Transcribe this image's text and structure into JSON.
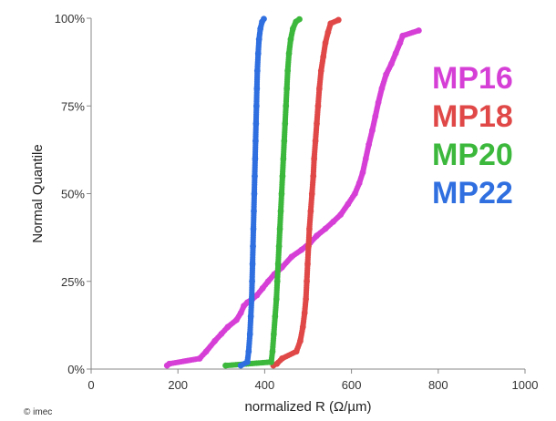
{
  "chart_data": {
    "type": "scatter",
    "title": "",
    "xlabel": "normalized R (Ω/µm)",
    "ylabel": "Normal Quantile",
    "xlim": [
      0,
      1000
    ],
    "ylim": [
      0,
      100
    ],
    "x_ticks": [
      "0",
      "200",
      "400",
      "600",
      "800",
      "1000"
    ],
    "y_ticks": [
      "0%",
      "25%",
      "50%",
      "75%",
      "100%"
    ],
    "grid": false,
    "legend_position": "right",
    "copyright": "© imec",
    "series": [
      {
        "name": "MP16",
        "color": "#d63fd6",
        "points": [
          [
            175,
            1
          ],
          [
            180,
            1.5
          ],
          [
            250,
            3
          ],
          [
            265,
            5
          ],
          [
            285,
            8
          ],
          [
            300,
            10
          ],
          [
            315,
            12
          ],
          [
            335,
            14
          ],
          [
            345,
            16
          ],
          [
            352,
            18
          ],
          [
            360,
            19
          ],
          [
            372,
            20
          ],
          [
            382,
            21
          ],
          [
            395,
            23
          ],
          [
            408,
            25
          ],
          [
            422,
            27
          ],
          [
            440,
            29
          ],
          [
            462,
            32
          ],
          [
            485,
            34
          ],
          [
            505,
            36
          ],
          [
            520,
            38
          ],
          [
            540,
            40
          ],
          [
            558,
            42
          ],
          [
            575,
            44
          ],
          [
            592,
            47
          ],
          [
            608,
            50
          ],
          [
            618,
            53
          ],
          [
            626,
            56
          ],
          [
            633,
            60
          ],
          [
            640,
            64
          ],
          [
            648,
            68
          ],
          [
            655,
            72
          ],
          [
            662,
            76
          ],
          [
            670,
            80
          ],
          [
            680,
            84
          ],
          [
            692,
            87
          ],
          [
            702,
            90
          ],
          [
            712,
            93
          ],
          [
            718,
            95
          ],
          [
            755,
            96.5
          ]
        ]
      },
      {
        "name": "MP18",
        "color": "#e04848",
        "points": [
          [
            420,
            1
          ],
          [
            428,
            1.5
          ],
          [
            440,
            3
          ],
          [
            473,
            5
          ],
          [
            482,
            8
          ],
          [
            488,
            12
          ],
          [
            492,
            16
          ],
          [
            495,
            20
          ],
          [
            497,
            25
          ],
          [
            499,
            30
          ],
          [
            501,
            35
          ],
          [
            503,
            40
          ],
          [
            506,
            45
          ],
          [
            509,
            50
          ],
          [
            512,
            55
          ],
          [
            514,
            60
          ],
          [
            517,
            65
          ],
          [
            520,
            70
          ],
          [
            523,
            75
          ],
          [
            526,
            80
          ],
          [
            530,
            85
          ],
          [
            535,
            89
          ],
          [
            540,
            93
          ],
          [
            546,
            96
          ],
          [
            552,
            98.5
          ],
          [
            570,
            99.5
          ]
        ]
      },
      {
        "name": "MP20",
        "color": "#3cb83c",
        "points": [
          [
            310,
            1
          ],
          [
            415,
            2
          ],
          [
            418,
            5
          ],
          [
            421,
            10
          ],
          [
            424,
            15
          ],
          [
            427,
            20
          ],
          [
            429,
            25
          ],
          [
            431,
            30
          ],
          [
            433,
            35
          ],
          [
            435,
            40
          ],
          [
            437,
            45
          ],
          [
            439,
            50
          ],
          [
            441,
            55
          ],
          [
            443,
            60
          ],
          [
            445,
            65
          ],
          [
            447,
            70
          ],
          [
            449,
            75
          ],
          [
            451,
            80
          ],
          [
            453,
            85
          ],
          [
            456,
            90
          ],
          [
            460,
            94
          ],
          [
            465,
            97
          ],
          [
            472,
            99
          ],
          [
            480,
            99.7
          ]
        ]
      },
      {
        "name": "MP22",
        "color": "#2f6fe0",
        "points": [
          [
            345,
            1
          ],
          [
            360,
            2
          ],
          [
            363,
            5
          ],
          [
            366,
            10
          ],
          [
            368,
            15
          ],
          [
            370,
            20
          ],
          [
            371,
            25
          ],
          [
            372,
            30
          ],
          [
            373,
            35
          ],
          [
            374,
            40
          ],
          [
            375,
            45
          ],
          [
            376,
            50
          ],
          [
            377,
            55
          ],
          [
            378,
            60
          ],
          [
            379,
            65
          ],
          [
            380,
            70
          ],
          [
            381,
            75
          ],
          [
            382,
            80
          ],
          [
            383,
            85
          ],
          [
            385,
            90
          ],
          [
            387,
            94
          ],
          [
            390,
            97
          ],
          [
            394,
            99
          ],
          [
            398,
            99.8
          ]
        ]
      }
    ]
  }
}
